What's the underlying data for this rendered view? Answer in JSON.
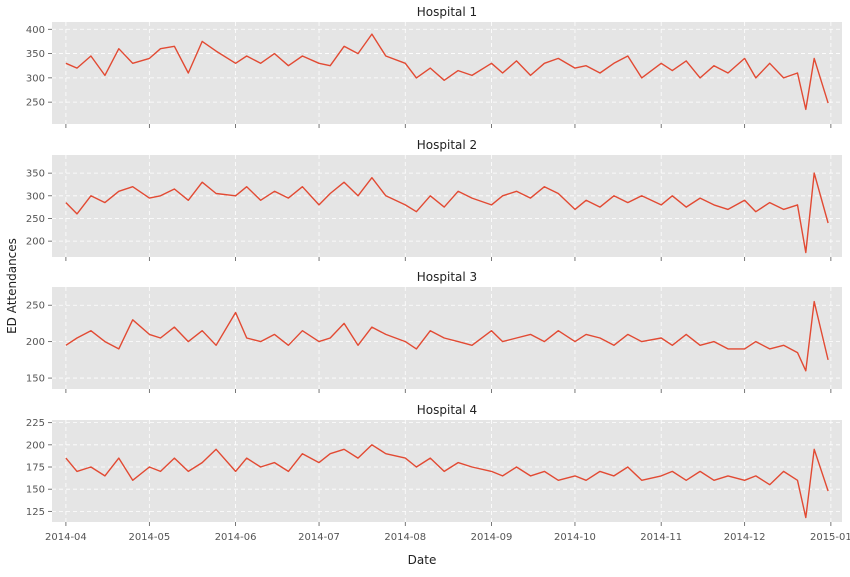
{
  "chart_data": {
    "type": "line",
    "xlabel": "Date",
    "ylabel": "ED Attendances",
    "x_range": [
      "2014-04-01",
      "2014-12-31"
    ],
    "x_ticks": [
      "2014-04",
      "2014-05",
      "2014-06",
      "2014-07",
      "2014-08",
      "2014-09",
      "2014-10",
      "2014-11",
      "2014-12",
      "2015-01"
    ],
    "grid": true,
    "colors": {
      "series": "#E24A33",
      "panel": "#E5E5E5"
    },
    "panels": [
      {
        "title": "Hospital 1",
        "ylim": [
          205,
          415
        ],
        "yticks": [
          250,
          300,
          350,
          400
        ],
        "sampled_points": [
          [
            "2014-04-01",
            330
          ],
          [
            "2014-04-05",
            320
          ],
          [
            "2014-04-10",
            345
          ],
          [
            "2014-04-15",
            305
          ],
          [
            "2014-04-20",
            360
          ],
          [
            "2014-04-25",
            330
          ],
          [
            "2014-05-01",
            340
          ],
          [
            "2014-05-05",
            360
          ],
          [
            "2014-05-10",
            365
          ],
          [
            "2014-05-15",
            310
          ],
          [
            "2014-05-20",
            375
          ],
          [
            "2014-05-25",
            355
          ],
          [
            "2014-06-01",
            330
          ],
          [
            "2014-06-05",
            345
          ],
          [
            "2014-06-10",
            330
          ],
          [
            "2014-06-15",
            350
          ],
          [
            "2014-06-20",
            325
          ],
          [
            "2014-06-25",
            345
          ],
          [
            "2014-07-01",
            330
          ],
          [
            "2014-07-05",
            325
          ],
          [
            "2014-07-10",
            365
          ],
          [
            "2014-07-15",
            350
          ],
          [
            "2014-07-20",
            390
          ],
          [
            "2014-07-25",
            345
          ],
          [
            "2014-08-01",
            330
          ],
          [
            "2014-08-05",
            300
          ],
          [
            "2014-08-10",
            320
          ],
          [
            "2014-08-15",
            295
          ],
          [
            "2014-08-20",
            315
          ],
          [
            "2014-08-25",
            305
          ],
          [
            "2014-09-01",
            330
          ],
          [
            "2014-09-05",
            310
          ],
          [
            "2014-09-10",
            335
          ],
          [
            "2014-09-15",
            305
          ],
          [
            "2014-09-20",
            330
          ],
          [
            "2014-09-25",
            340
          ],
          [
            "2014-10-01",
            320
          ],
          [
            "2014-10-05",
            325
          ],
          [
            "2014-10-10",
            310
          ],
          [
            "2014-10-15",
            330
          ],
          [
            "2014-10-20",
            345
          ],
          [
            "2014-10-25",
            300
          ],
          [
            "2014-11-01",
            330
          ],
          [
            "2014-11-05",
            315
          ],
          [
            "2014-11-10",
            335
          ],
          [
            "2014-11-15",
            300
          ],
          [
            "2014-11-20",
            325
          ],
          [
            "2014-11-25",
            310
          ],
          [
            "2014-12-01",
            340
          ],
          [
            "2014-12-05",
            300
          ],
          [
            "2014-12-10",
            330
          ],
          [
            "2014-12-15",
            300
          ],
          [
            "2014-12-20",
            310
          ],
          [
            "2014-12-23",
            235
          ],
          [
            "2014-12-26",
            340
          ],
          [
            "2014-12-31",
            248
          ]
        ]
      },
      {
        "title": "Hospital 2",
        "ylim": [
          165,
          390
        ],
        "yticks": [
          200,
          250,
          300,
          350
        ],
        "sampled_points": [
          [
            "2014-04-01",
            285
          ],
          [
            "2014-04-05",
            260
          ],
          [
            "2014-04-10",
            300
          ],
          [
            "2014-04-15",
            285
          ],
          [
            "2014-04-20",
            310
          ],
          [
            "2014-04-25",
            320
          ],
          [
            "2014-05-01",
            295
          ],
          [
            "2014-05-05",
            300
          ],
          [
            "2014-05-10",
            315
          ],
          [
            "2014-05-15",
            290
          ],
          [
            "2014-05-20",
            330
          ],
          [
            "2014-05-25",
            305
          ],
          [
            "2014-06-01",
            300
          ],
          [
            "2014-06-05",
            320
          ],
          [
            "2014-06-10",
            290
          ],
          [
            "2014-06-15",
            310
          ],
          [
            "2014-06-20",
            295
          ],
          [
            "2014-06-25",
            320
          ],
          [
            "2014-07-01",
            280
          ],
          [
            "2014-07-05",
            305
          ],
          [
            "2014-07-10",
            330
          ],
          [
            "2014-07-15",
            300
          ],
          [
            "2014-07-20",
            340
          ],
          [
            "2014-07-25",
            300
          ],
          [
            "2014-08-01",
            280
          ],
          [
            "2014-08-05",
            265
          ],
          [
            "2014-08-10",
            300
          ],
          [
            "2014-08-15",
            275
          ],
          [
            "2014-08-20",
            310
          ],
          [
            "2014-08-25",
            295
          ],
          [
            "2014-09-01",
            280
          ],
          [
            "2014-09-05",
            300
          ],
          [
            "2014-09-10",
            310
          ],
          [
            "2014-09-15",
            295
          ],
          [
            "2014-09-20",
            320
          ],
          [
            "2014-09-25",
            305
          ],
          [
            "2014-10-01",
            270
          ],
          [
            "2014-10-05",
            290
          ],
          [
            "2014-10-10",
            275
          ],
          [
            "2014-10-15",
            300
          ],
          [
            "2014-10-20",
            285
          ],
          [
            "2014-10-25",
            300
          ],
          [
            "2014-11-01",
            280
          ],
          [
            "2014-11-05",
            300
          ],
          [
            "2014-11-10",
            275
          ],
          [
            "2014-11-15",
            295
          ],
          [
            "2014-11-20",
            280
          ],
          [
            "2014-11-25",
            270
          ],
          [
            "2014-12-01",
            290
          ],
          [
            "2014-12-05",
            265
          ],
          [
            "2014-12-10",
            285
          ],
          [
            "2014-12-15",
            270
          ],
          [
            "2014-12-20",
            280
          ],
          [
            "2014-12-23",
            175
          ],
          [
            "2014-12-26",
            350
          ],
          [
            "2014-12-31",
            240
          ]
        ]
      },
      {
        "title": "Hospital 3",
        "ylim": [
          135,
          275
        ],
        "yticks": [
          150,
          200,
          250
        ],
        "sampled_points": [
          [
            "2014-04-01",
            195
          ],
          [
            "2014-04-05",
            205
          ],
          [
            "2014-04-10",
            215
          ],
          [
            "2014-04-15",
            200
          ],
          [
            "2014-04-20",
            190
          ],
          [
            "2014-04-25",
            230
          ],
          [
            "2014-05-01",
            210
          ],
          [
            "2014-05-05",
            205
          ],
          [
            "2014-05-10",
            220
          ],
          [
            "2014-05-15",
            200
          ],
          [
            "2014-05-20",
            215
          ],
          [
            "2014-05-25",
            195
          ],
          [
            "2014-06-01",
            240
          ],
          [
            "2014-06-05",
            205
          ],
          [
            "2014-06-10",
            200
          ],
          [
            "2014-06-15",
            210
          ],
          [
            "2014-06-20",
            195
          ],
          [
            "2014-06-25",
            215
          ],
          [
            "2014-07-01",
            200
          ],
          [
            "2014-07-05",
            205
          ],
          [
            "2014-07-10",
            225
          ],
          [
            "2014-07-15",
            195
          ],
          [
            "2014-07-20",
            220
          ],
          [
            "2014-07-25",
            210
          ],
          [
            "2014-08-01",
            200
          ],
          [
            "2014-08-05",
            190
          ],
          [
            "2014-08-10",
            215
          ],
          [
            "2014-08-15",
            205
          ],
          [
            "2014-08-20",
            200
          ],
          [
            "2014-08-25",
            195
          ],
          [
            "2014-09-01",
            215
          ],
          [
            "2014-09-05",
            200
          ],
          [
            "2014-09-10",
            205
          ],
          [
            "2014-09-15",
            210
          ],
          [
            "2014-09-20",
            200
          ],
          [
            "2014-09-25",
            215
          ],
          [
            "2014-10-01",
            200
          ],
          [
            "2014-10-05",
            210
          ],
          [
            "2014-10-10",
            205
          ],
          [
            "2014-10-15",
            195
          ],
          [
            "2014-10-20",
            210
          ],
          [
            "2014-10-25",
            200
          ],
          [
            "2014-11-01",
            205
          ],
          [
            "2014-11-05",
            195
          ],
          [
            "2014-11-10",
            210
          ],
          [
            "2014-11-15",
            195
          ],
          [
            "2014-11-20",
            200
          ],
          [
            "2014-11-25",
            190
          ],
          [
            "2014-12-01",
            190
          ],
          [
            "2014-12-05",
            200
          ],
          [
            "2014-12-10",
            190
          ],
          [
            "2014-12-15",
            195
          ],
          [
            "2014-12-20",
            185
          ],
          [
            "2014-12-23",
            160
          ],
          [
            "2014-12-26",
            255
          ],
          [
            "2014-12-31",
            175
          ]
        ]
      },
      {
        "title": "Hospital 4",
        "ylim": [
          113,
          228
        ],
        "yticks": [
          125,
          150,
          175,
          200,
          225
        ],
        "sampled_points": [
          [
            "2014-04-01",
            185
          ],
          [
            "2014-04-05",
            170
          ],
          [
            "2014-04-10",
            175
          ],
          [
            "2014-04-15",
            165
          ],
          [
            "2014-04-20",
            185
          ],
          [
            "2014-04-25",
            160
          ],
          [
            "2014-05-01",
            175
          ],
          [
            "2014-05-05",
            170
          ],
          [
            "2014-05-10",
            185
          ],
          [
            "2014-05-15",
            170
          ],
          [
            "2014-05-20",
            180
          ],
          [
            "2014-05-25",
            195
          ],
          [
            "2014-06-01",
            170
          ],
          [
            "2014-06-05",
            185
          ],
          [
            "2014-06-10",
            175
          ],
          [
            "2014-06-15",
            180
          ],
          [
            "2014-06-20",
            170
          ],
          [
            "2014-06-25",
            190
          ],
          [
            "2014-07-01",
            180
          ],
          [
            "2014-07-05",
            190
          ],
          [
            "2014-07-10",
            195
          ],
          [
            "2014-07-15",
            185
          ],
          [
            "2014-07-20",
            200
          ],
          [
            "2014-07-25",
            190
          ],
          [
            "2014-08-01",
            185
          ],
          [
            "2014-08-05",
            175
          ],
          [
            "2014-08-10",
            185
          ],
          [
            "2014-08-15",
            170
          ],
          [
            "2014-08-20",
            180
          ],
          [
            "2014-08-25",
            175
          ],
          [
            "2014-09-01",
            170
          ],
          [
            "2014-09-05",
            165
          ],
          [
            "2014-09-10",
            175
          ],
          [
            "2014-09-15",
            165
          ],
          [
            "2014-09-20",
            170
          ],
          [
            "2014-09-25",
            160
          ],
          [
            "2014-10-01",
            165
          ],
          [
            "2014-10-05",
            160
          ],
          [
            "2014-10-10",
            170
          ],
          [
            "2014-10-15",
            165
          ],
          [
            "2014-10-20",
            175
          ],
          [
            "2014-10-25",
            160
          ],
          [
            "2014-11-01",
            165
          ],
          [
            "2014-11-05",
            170
          ],
          [
            "2014-11-10",
            160
          ],
          [
            "2014-11-15",
            170
          ],
          [
            "2014-11-20",
            160
          ],
          [
            "2014-11-25",
            165
          ],
          [
            "2014-12-01",
            160
          ],
          [
            "2014-12-05",
            165
          ],
          [
            "2014-12-10",
            155
          ],
          [
            "2014-12-15",
            170
          ],
          [
            "2014-12-20",
            160
          ],
          [
            "2014-12-23",
            118
          ],
          [
            "2014-12-26",
            195
          ],
          [
            "2014-12-31",
            148
          ]
        ]
      }
    ]
  }
}
